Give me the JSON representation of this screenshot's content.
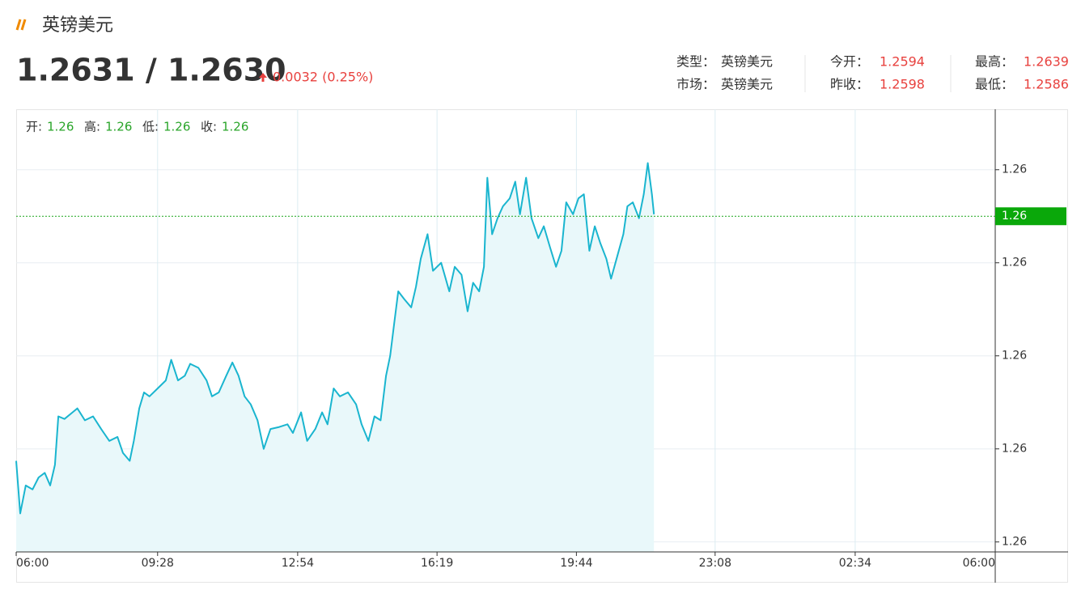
{
  "header": {
    "title": "英镑美元",
    "price": "1.2631 / 1.2630",
    "change": "0.0032 (0.25%)"
  },
  "info": [
    [
      {
        "label": "类型：",
        "value": "英镑美元"
      },
      {
        "label": "今开：",
        "value": "1.2594"
      },
      {
        "label": "最高：",
        "value": "1.2639"
      }
    ],
    [
      {
        "label": "市场：",
        "value": "英镑美元"
      },
      {
        "label": "昨收：",
        "value": "1.2598"
      },
      {
        "label": "最低：",
        "value": "1.2586"
      }
    ]
  ],
  "chart_data": {
    "type": "line",
    "color": "#1ab5cf",
    "fill_color": "#e9f8fa",
    "grid": true,
    "ohlc": [
      {
        "label": "开:",
        "value": "1.26"
      },
      {
        "label": "高:",
        "value": "1.26"
      },
      {
        "label": "低:",
        "value": "1.26"
      },
      {
        "label": "收:",
        "value": "1.26"
      }
    ],
    "last": {
      "value": 1.2631,
      "label": "1.26"
    },
    "xlim": [
      0,
      1440
    ],
    "xticks": [
      {
        "value": 0,
        "label": "06:00"
      },
      {
        "value": 208,
        "label": "09:28"
      },
      {
        "value": 414,
        "label": "12:54"
      },
      {
        "value": 619,
        "label": "16:19"
      },
      {
        "value": 824,
        "label": "19:44"
      },
      {
        "value": 1028,
        "label": "23:08"
      },
      {
        "value": 1234,
        "label": "02:34"
      },
      {
        "value": 1440,
        "label": "06:00"
      }
    ],
    "ylim": [
      1.25805,
      1.26471
    ],
    "yticks": [
      {
        "value": 1.2582,
        "label": "1.26"
      },
      {
        "value": 1.2596,
        "label": "1.26"
      },
      {
        "value": 1.261,
        "label": "1.26"
      },
      {
        "value": 1.2624,
        "label": "1.26"
      },
      {
        "value": 1.2638,
        "label": "1.26"
      }
    ],
    "x": [
      0,
      6,
      14,
      24,
      33,
      42,
      50,
      57,
      62,
      71,
      83,
      90,
      101,
      113,
      125,
      137,
      149,
      157,
      167,
      173,
      181,
      188,
      196,
      208,
      220,
      228,
      238,
      248,
      256,
      268,
      280,
      288,
      298,
      309,
      318,
      327,
      336,
      345,
      355,
      364,
      374,
      387,
      399,
      407,
      419,
      428,
      440,
      450,
      458,
      467,
      476,
      488,
      500,
      508,
      518,
      527,
      536,
      544,
      550,
      556,
      562,
      571,
      581,
      588,
      595,
      605,
      613,
      625,
      637,
      645,
      655,
      664,
      672,
      681,
      688,
      693,
      700,
      708,
      716,
      726,
      734,
      741,
      750,
      758,
      768,
      776,
      785,
      794,
      802,
      809,
      819,
      827,
      835,
      843,
      851,
      859,
      868,
      875,
      883,
      893,
      899,
      907,
      916,
      923,
      929,
      935,
      938
    ],
    "values": [
      1.25942,
      1.25863,
      1.25905,
      1.25899,
      1.25917,
      1.25924,
      1.25905,
      1.25936,
      1.26009,
      1.26005,
      1.26015,
      1.26021,
      1.26003,
      1.26009,
      1.2599,
      1.25972,
      1.25978,
      1.25954,
      1.25942,
      1.25972,
      1.26021,
      1.26045,
      1.26039,
      1.26051,
      1.26063,
      1.26094,
      1.26063,
      1.2607,
      1.26088,
      1.26082,
      1.26063,
      1.26039,
      1.26045,
      1.2607,
      1.2609,
      1.2607,
      1.26039,
      1.26027,
      1.26003,
      1.2596,
      1.2599,
      1.25993,
      1.25997,
      1.25984,
      1.26015,
      1.25972,
      1.2599,
      1.26015,
      1.25997,
      1.26051,
      1.26039,
      1.26045,
      1.26027,
      1.25997,
      1.25972,
      1.26009,
      1.26003,
      1.2607,
      1.261,
      1.26149,
      1.26197,
      1.26185,
      1.26173,
      1.26204,
      1.26246,
      1.26283,
      1.26228,
      1.2624,
      1.26197,
      1.26234,
      1.26222,
      1.26167,
      1.2621,
      1.26197,
      1.26234,
      1.26368,
      1.26283,
      1.26307,
      1.26325,
      1.26337,
      1.26362,
      1.26313,
      1.26368,
      1.26307,
      1.26277,
      1.26295,
      1.26264,
      1.26234,
      1.26258,
      1.26331,
      1.26313,
      1.26337,
      1.26343,
      1.26258,
      1.26295,
      1.2627,
      1.26246,
      1.26216,
      1.26246,
      1.26283,
      1.26325,
      1.26331,
      1.26307,
      1.26343,
      1.2639,
      1.26343,
      1.26313
    ]
  }
}
